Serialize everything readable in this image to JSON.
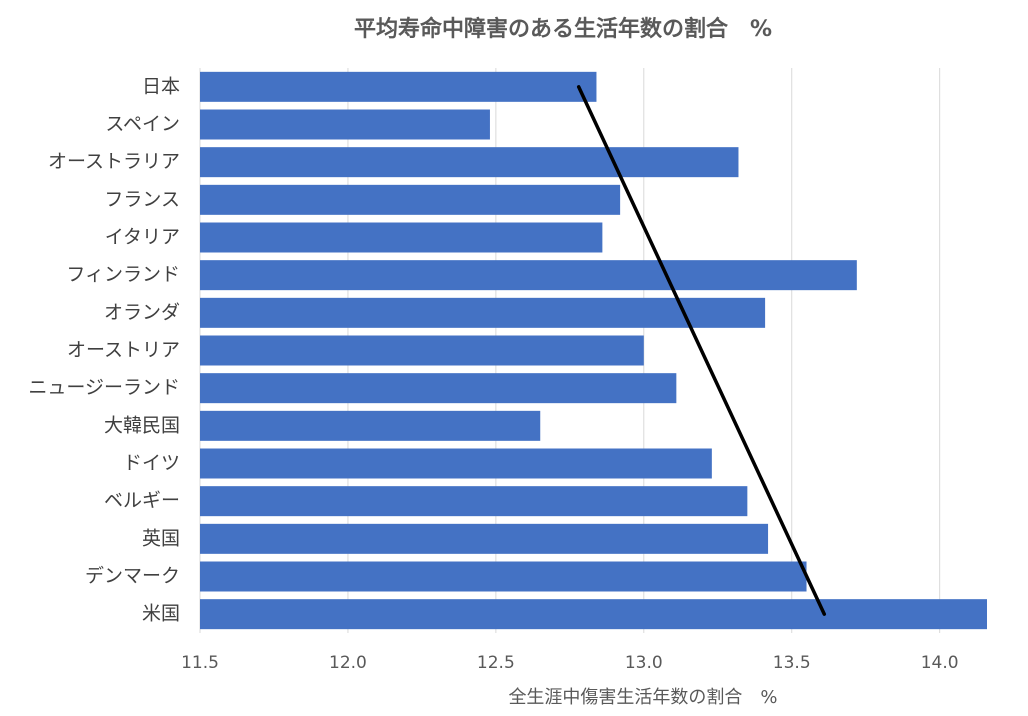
{
  "chart_data": {
    "type": "bar",
    "orientation": "horizontal",
    "title": "平均寿命中障害のある生活年数の割合　%",
    "x_label": "全生涯中傷害生活年数の割合　%",
    "categories": [
      "日本",
      "スペイン",
      "オーストラリア",
      "フランス",
      "イタリア",
      "フィンランド",
      "オランダ",
      "オーストリア",
      "ニュージーランド",
      "大韓民国",
      "ドイツ",
      "ベルギー",
      "英国",
      "デンマーク",
      "米国"
    ],
    "values": [
      12.84,
      12.48,
      13.32,
      12.92,
      12.86,
      13.72,
      13.41,
      13.0,
      13.11,
      12.65,
      13.23,
      13.35,
      13.42,
      13.55,
      14.16
    ],
    "color": "#4472c4",
    "xlim": [
      11.5,
      14.16
    ],
    "xticks": [
      11.5,
      {
        "value": 12,
        "label": "12.0"
      },
      12.5,
      {
        "value": 13,
        "label": "13.0"
      },
      13.5,
      {
        "value": 14,
        "label": "14.0"
      }
    ],
    "grid": true,
    "trendline": [
      12.78,
      13.61
    ],
    "trendline_color": "#000000"
  }
}
